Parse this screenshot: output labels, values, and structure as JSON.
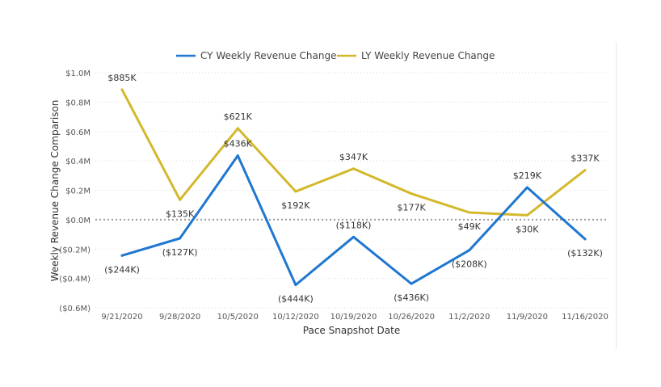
{
  "chart_data": {
    "type": "line",
    "categories": [
      "9/21/2020",
      "9/28/2020",
      "10/5/2020",
      "10/12/2020",
      "10/19/2020",
      "10/26/2020",
      "11/2/2020",
      "11/9/2020",
      "11/16/2020"
    ],
    "series": [
      {
        "name": "CY Weekly Revenue Change",
        "color": "#1f77d0",
        "values": [
          -0.244,
          -0.127,
          0.436,
          -0.444,
          -0.118,
          -0.436,
          -0.208,
          0.219,
          -0.132
        ],
        "labels": [
          "($244K)",
          "($127K)",
          "$436K",
          "($444K)",
          "($118K)",
          "($436K)",
          "($208K)",
          "$219K",
          "($132K)"
        ]
      },
      {
        "name": "LY Weekly Revenue Change",
        "color": "#d4b82c",
        "values": [
          0.885,
          0.135,
          0.621,
          0.192,
          0.347,
          0.177,
          0.049,
          0.03,
          0.337
        ],
        "labels": [
          "$885K",
          "$135K",
          "$621K",
          "$192K",
          "$347K",
          "$177K",
          "$49K",
          "$30K",
          "$337K"
        ]
      }
    ],
    "ylim": [
      -0.6,
      1.0
    ],
    "yticks": [
      1.0,
      0.8,
      0.6,
      0.4,
      0.2,
      0.0,
      -0.2,
      -0.4,
      -0.6
    ],
    "ytick_labels": [
      "$1.0M",
      "$0.8M",
      "$0.6M",
      "$0.4M",
      "$0.2M",
      "$0.0M",
      "($0.2M)",
      "($0.4M)",
      "($0.6M)"
    ],
    "xlabel": "Pace Snapshot Date",
    "ylabel": "Weekly Revenue Change Comparison",
    "legend_position": "top-center",
    "grid": true,
    "zero_line": true
  }
}
